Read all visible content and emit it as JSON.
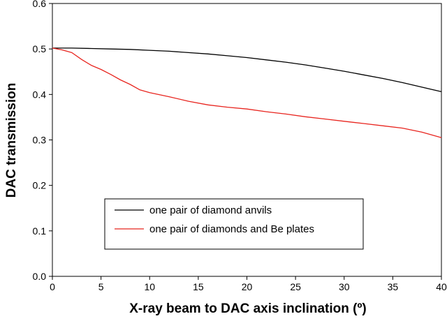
{
  "chart_data": {
    "type": "line",
    "title": "",
    "xlabel": "X-ray beam to DAC axis inclination (º)",
    "ylabel": "DAC transmission",
    "xlim": [
      0,
      40
    ],
    "ylim": [
      0.0,
      0.6
    ],
    "xticks": [
      0,
      5,
      10,
      15,
      20,
      25,
      30,
      35,
      40
    ],
    "yticks": [
      "0.0",
      "0.1",
      "0.2",
      "0.3",
      "0.4",
      "0.5",
      "0.6"
    ],
    "grid": false,
    "legend_position": "bottom-left",
    "series": [
      {
        "name": "one pair of diamond anvils",
        "color": "#000000",
        "x": [
          0,
          2,
          4,
          6,
          8,
          10,
          12,
          14,
          16,
          18,
          20,
          22,
          24,
          26,
          28,
          30,
          32,
          34,
          36,
          38,
          40
        ],
        "y": [
          0.502,
          0.502,
          0.501,
          0.5,
          0.499,
          0.497,
          0.495,
          0.492,
          0.489,
          0.485,
          0.481,
          0.476,
          0.471,
          0.465,
          0.458,
          0.451,
          0.443,
          0.435,
          0.426,
          0.416,
          0.406
        ]
      },
      {
        "name": "one pair of diamonds and Be plates",
        "color": "#e8251f",
        "x": [
          0,
          1,
          2,
          3,
          4,
          5,
          6,
          7,
          8,
          9,
          10,
          12,
          14,
          16,
          18,
          20,
          22,
          24,
          26,
          28,
          30,
          32,
          34,
          36,
          38,
          40
        ],
        "y": [
          0.502,
          0.498,
          0.492,
          0.477,
          0.464,
          0.455,
          0.444,
          0.432,
          0.422,
          0.41,
          0.404,
          0.395,
          0.385,
          0.377,
          0.372,
          0.368,
          0.362,
          0.357,
          0.351,
          0.346,
          0.341,
          0.336,
          0.331,
          0.326,
          0.317,
          0.305
        ]
      }
    ]
  }
}
